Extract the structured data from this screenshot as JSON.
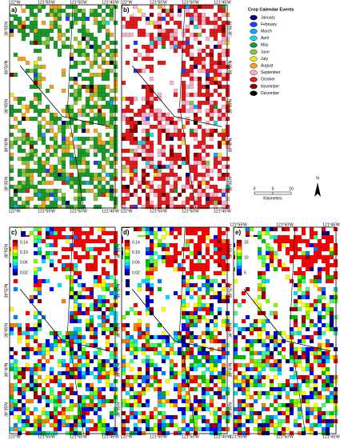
{
  "panels": [
    {
      "label": "a)",
      "top_labels": [
        "122°W",
        "121°55'W",
        "121°50'W",
        "121°45'W"
      ],
      "bottom_labels": [
        "122°W",
        "121°55'W",
        "121°50'W",
        "121°45'W"
      ],
      "side_labels": [
        "38°55'N",
        "38°50'N",
        "38°45'N",
        "38°40'N",
        "38°35'N"
      ],
      "side": "left"
    },
    {
      "label": "b)",
      "top_labels": [
        "122°W",
        "121°55'W",
        "121°50'W",
        "121°45'W"
      ],
      "bottom_labels": [
        "122°W",
        "121°55'W",
        "121°50'W",
        "121°45'W"
      ],
      "side_labels": [
        "38°55'N",
        "38°50'N",
        "38°45'N",
        "38°40'N",
        "38°35'N"
      ],
      "side": "right"
    },
    {
      "label": "c)",
      "bottom_labels": [
        "122°W",
        "121°55'W",
        "121°50'W",
        "121°45'W"
      ],
      "side_labels": [
        "38°55'N",
        "38°50'N",
        "38°45'N",
        "38°40'N",
        "38°35'N"
      ],
      "side": "left",
      "colorbar_ticks": [
        "0.14",
        "0.10",
        "0.06",
        "0.02"
      ]
    },
    {
      "label": "d)",
      "bottom_labels": [
        "122°W",
        "121°55'W",
        "121°50'W",
        "121°45'W"
      ],
      "side_labels": [
        "38°55'N",
        "38°50'N",
        "38°45'N",
        "38°40'N",
        "38°35'N"
      ],
      "side": "left",
      "colorbar_ticks": [
        "0.14",
        "0.10",
        "0.06",
        "0.02"
      ]
    },
    {
      "label": "e)",
      "top_labels": [
        "121°55'W",
        "121°50'W",
        "121°45'W"
      ],
      "bottom_labels": [
        "121°55'W",
        "121°50'W",
        "121°45'W"
      ],
      "side_labels": [
        "38°55'N",
        "38°50'N",
        "38°45'N",
        "38°40'N",
        "38°35'N"
      ],
      "side": "left",
      "colorbar_ticks": [
        "15",
        "10",
        "5"
      ]
    }
  ],
  "legend": {
    "title": "Crop Calendar Events",
    "items": [
      {
        "label": "January",
        "color": "#00007f"
      },
      {
        "label": "February",
        "color": "#1f3fff"
      },
      {
        "label": "March",
        "color": "#1ea0ff"
      },
      {
        "label": "April",
        "color": "#19d9d9"
      },
      {
        "label": "May",
        "color": "#1a9a2a"
      },
      {
        "label": "June",
        "color": "#8cc63f"
      },
      {
        "label": "July",
        "color": "#f2e41c"
      },
      {
        "label": "August",
        "color": "#f5a21f"
      },
      {
        "label": "September",
        "color": "#f5b3cc"
      },
      {
        "label": "October",
        "color": "#e41a1c"
      },
      {
        "label": "November",
        "color": "#8b0000"
      },
      {
        "label": "December",
        "color": "#000000"
      }
    ]
  },
  "scale_bar": {
    "ticks": [
      "0",
      "5",
      "10"
    ],
    "unit": "Kilometers"
  },
  "north": "N"
}
